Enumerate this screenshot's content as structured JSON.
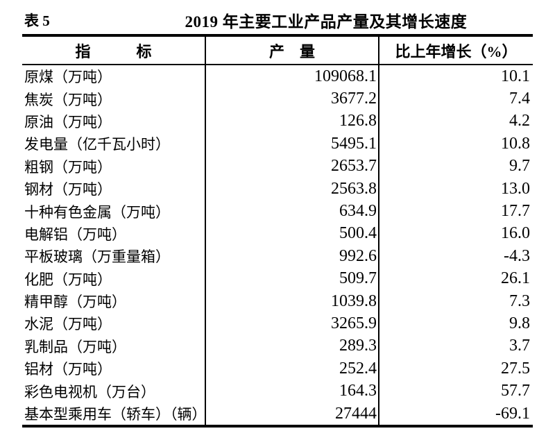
{
  "page": {
    "background": "#ffffff",
    "text_color": "#000000",
    "border_color": "#000000"
  },
  "caption": {
    "table_label": "表 5",
    "title": "2019 年主要工业产品产量及其增长速度"
  },
  "table": {
    "headers": {
      "indicator": "指　　　标",
      "output": "产　量",
      "growth": "比上年增长（%）"
    },
    "rows": [
      [
        "原煤（万吨）",
        "109068.1",
        "10.1"
      ],
      [
        "焦炭（万吨）",
        "3677.2",
        "7.4"
      ],
      [
        "原油（万吨）",
        "126.8",
        "4.2"
      ],
      [
        "发电量（亿千瓦小时）",
        "5495.1",
        "10.8"
      ],
      [
        "粗钢（万吨）",
        "2653.7",
        "9.7"
      ],
      [
        "钢材（万吨）",
        "2563.8",
        "13.0"
      ],
      [
        "十种有色金属（万吨）",
        "634.9",
        "17.7"
      ],
      [
        "电解铝（万吨）",
        "500.4",
        "16.0"
      ],
      [
        "平板玻璃（万重量箱）",
        "992.6",
        "-4.3"
      ],
      [
        "化肥（万吨）",
        "509.7",
        "26.1"
      ],
      [
        "精甲醇（万吨）",
        "1039.8",
        "7.3"
      ],
      [
        "水泥（万吨）",
        "3265.9",
        "9.8"
      ],
      [
        "乳制品（万吨）",
        "289.3",
        "3.7"
      ],
      [
        "铝材（万吨）",
        "252.4",
        "27.5"
      ],
      [
        "彩色电视机（万台）",
        "164.3",
        "57.7"
      ],
      [
        "基本型乘用车（轿车）（辆）",
        "27444",
        "-69.1"
      ]
    ]
  },
  "chart_data": {
    "type": "table",
    "title": "2019 年主要工业产品产量及其增长速度",
    "columns": [
      "指标",
      "产量",
      "比上年增长（%）"
    ],
    "rows": [
      {
        "indicator": "原煤（万吨）",
        "output": 109068.1,
        "growth": 10.1
      },
      {
        "indicator": "焦炭（万吨）",
        "output": 3677.2,
        "growth": 7.4
      },
      {
        "indicator": "原油（万吨）",
        "output": 126.8,
        "growth": 4.2
      },
      {
        "indicator": "发电量（亿千瓦小时）",
        "output": 5495.1,
        "growth": 10.8
      },
      {
        "indicator": "粗钢（万吨）",
        "output": 2653.7,
        "growth": 9.7
      },
      {
        "indicator": "钢材（万吨）",
        "output": 2563.8,
        "growth": 13.0
      },
      {
        "indicator": "十种有色金属（万吨）",
        "output": 634.9,
        "growth": 17.7
      },
      {
        "indicator": "电解铝（万吨）",
        "output": 500.4,
        "growth": 16.0
      },
      {
        "indicator": "平板玻璃（万重量箱）",
        "output": 992.6,
        "growth": -4.3
      },
      {
        "indicator": "化肥（万吨）",
        "output": 509.7,
        "growth": 26.1
      },
      {
        "indicator": "精甲醇（万吨）",
        "output": 1039.8,
        "growth": 7.3
      },
      {
        "indicator": "水泥（万吨）",
        "output": 3265.9,
        "growth": 9.8
      },
      {
        "indicator": "乳制品（万吨）",
        "output": 289.3,
        "growth": 3.7
      },
      {
        "indicator": "铝材（万吨）",
        "output": 252.4,
        "growth": 27.5
      },
      {
        "indicator": "彩色电视机（万台）",
        "output": 164.3,
        "growth": 57.7
      },
      {
        "indicator": "基本型乘用车（轿车）（辆）",
        "output": 27444,
        "growth": -69.1
      }
    ]
  }
}
